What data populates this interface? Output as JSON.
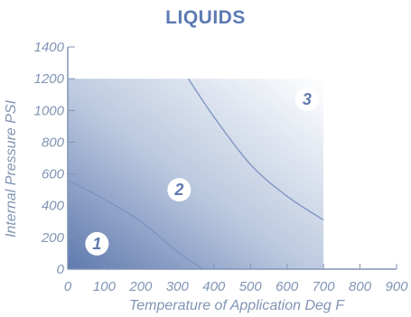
{
  "chart_data": {
    "type": "area",
    "title": "LIQUIDS",
    "xlabel": "Temperature of Application Deg F",
    "ylabel": "Internal Pressure PSI",
    "xlim": [
      0,
      900
    ],
    "ylim": [
      0,
      1400
    ],
    "x_ticks": [
      "0",
      "100",
      "200",
      "300",
      "400",
      "500",
      "600",
      "700",
      "800",
      "900"
    ],
    "y_ticks": [
      "0",
      "200",
      "400",
      "600",
      "800",
      "1000",
      "1200",
      "1400"
    ],
    "region_limits": {
      "x_max": 700,
      "y_max": 1200
    },
    "boundaries": [
      {
        "between": [
          "1",
          "2"
        ],
        "points": [
          [
            0,
            560
          ],
          [
            100,
            440
          ],
          [
            200,
            300
          ],
          [
            300,
            110
          ],
          [
            370,
            0
          ]
        ]
      },
      {
        "between": [
          "2",
          "3"
        ],
        "points": [
          [
            330,
            1200
          ],
          [
            400,
            960
          ],
          [
            500,
            660
          ],
          [
            600,
            460
          ],
          [
            700,
            310
          ]
        ]
      }
    ],
    "zone_labels": [
      {
        "label": "1",
        "x": 80,
        "y": 160
      },
      {
        "label": "2",
        "x": 305,
        "y": 500
      },
      {
        "label": "3",
        "x": 655,
        "y": 1070
      }
    ],
    "colors": {
      "zone_dark": "#5f79ae",
      "zone_light": "#ffffff",
      "axis": "#8194b3",
      "title": "#5c7ab3"
    },
    "grid": false
  }
}
